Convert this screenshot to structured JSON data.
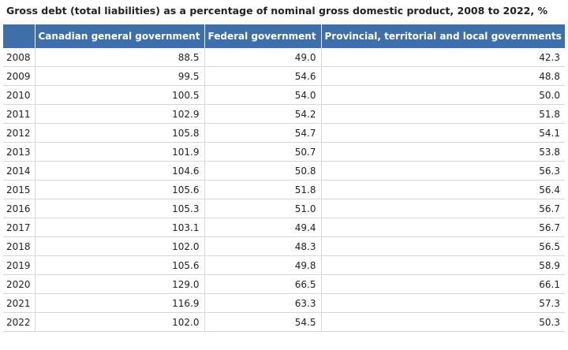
{
  "title": "Gross debt (total liabilities) as a percentage of nominal gross domestic product, 2008  to 2022, %",
  "colors": {
    "header_bg": "#3f6fa8",
    "header_text": "#ffffff",
    "grid": "#d8d8d8"
  },
  "chart_data": {
    "type": "table",
    "title": "Gross debt (total liabilities) as a percentage of nominal gross domestic product, 2008  to 2022, %",
    "columns": [
      "",
      "Canadian general government",
      "Federal government",
      "Provincial, territorial and local governments"
    ],
    "rows": [
      [
        "2008",
        "88.5",
        "49.0",
        "42.3"
      ],
      [
        "2009",
        "99.5",
        "54.6",
        "48.8"
      ],
      [
        "2010",
        "100.5",
        "54.0",
        "50.0"
      ],
      [
        "2011",
        "102.9",
        "54.2",
        "51.8"
      ],
      [
        "2012",
        "105.8",
        "54.7",
        "54.1"
      ],
      [
        "2013",
        "101.9",
        "50.7",
        "53.8"
      ],
      [
        "2014",
        "104.6",
        "50.8",
        "56.3"
      ],
      [
        "2015",
        "105.6",
        "51.8",
        "56.4"
      ],
      [
        "2016",
        "105.3",
        "51.0",
        "56.7"
      ],
      [
        "2017",
        "103.1",
        "49.4",
        "56.7"
      ],
      [
        "2018",
        "102.0",
        "48.3",
        "56.5"
      ],
      [
        "2019",
        "105.6",
        "49.8",
        "58.9"
      ],
      [
        "2020",
        "129.0",
        "66.5",
        "66.1"
      ],
      [
        "2021",
        "116.9",
        "63.3",
        "57.3"
      ],
      [
        "2022",
        "102.0",
        "54.5",
        "50.3"
      ]
    ]
  }
}
